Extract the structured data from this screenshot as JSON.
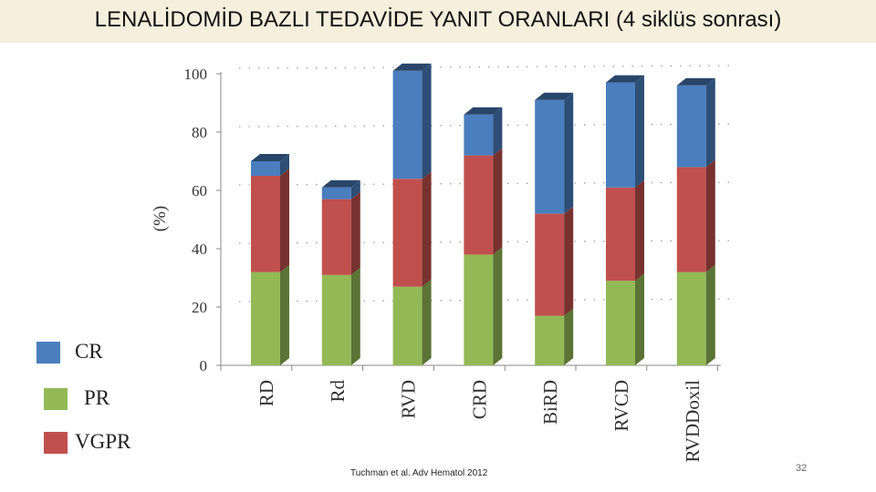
{
  "slide": {
    "title": "LENALİDOMİD BAZLI TEDAVİDE YANIT ORANLARI (4 siklüs sonrası)",
    "source": "Tuchman et al. Adv Hematol 2012",
    "page_number": "32"
  },
  "legend": [
    {
      "label": "CR",
      "color": "#4a7ebf"
    },
    {
      "label": "PR",
      "color": "#93b956"
    },
    {
      "label": "VGPR",
      "color": "#c0504d"
    }
  ],
  "chart_data": {
    "type": "bar",
    "stacked": true,
    "three_d": true,
    "categories": [
      "RD",
      "Rd",
      "RVD",
      "CRD",
      "BiRD",
      "RVCD",
      "RVDDoxil"
    ],
    "series": [
      {
        "name": "PR",
        "color": "#93b956",
        "values": [
          32,
          31,
          27,
          38,
          17,
          29,
          32
        ]
      },
      {
        "name": "VGPR",
        "color": "#c0504d",
        "values": [
          33,
          26,
          37,
          34,
          35,
          32,
          36
        ]
      },
      {
        "name": "CR",
        "color": "#4a7ebf",
        "values": [
          5,
          4,
          37,
          14,
          39,
          36,
          28
        ]
      }
    ],
    "ylabel": "(%)",
    "ylim": [
      0,
      100
    ],
    "yticks": [
      0,
      20,
      40,
      60,
      80,
      100
    ],
    "grid": true,
    "legend_position": "left"
  }
}
